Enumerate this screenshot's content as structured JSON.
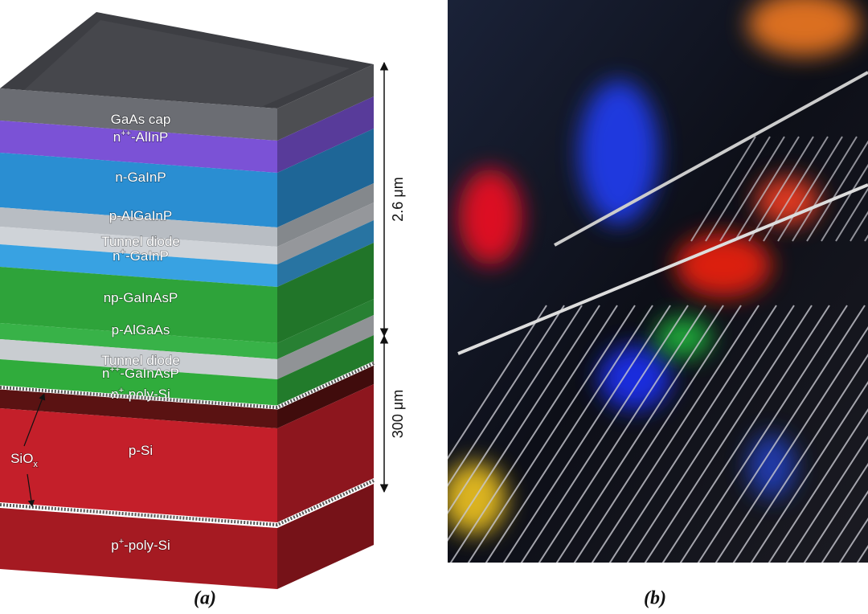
{
  "panel_a": {
    "layers": [
      {
        "name": "GaAs cap"
      },
      {
        "name": "n",
        "sup": "++",
        "rest": "-AlInP"
      },
      {
        "name": "n-GaInP"
      },
      {
        "name": "p-AlGaInP"
      },
      {
        "name": "Tunnel diode"
      },
      {
        "name": "n",
        "sup": "+",
        "rest": "-GaInP"
      },
      {
        "name": "np-GaInAsP"
      },
      {
        "name": "p-AlGaAs"
      },
      {
        "name": "Tunnel diode"
      },
      {
        "name": "n",
        "sup": "++",
        "rest": "-GaInAsP"
      },
      {
        "name": "n",
        "sup": "+",
        "rest": "-poly-Si"
      },
      {
        "name": "p-Si"
      },
      {
        "name": "p",
        "sup": "+",
        "rest": "-poly-Si"
      }
    ],
    "dimensions": [
      "2.6 μm",
      "300 μm"
    ],
    "oxide_label": {
      "base": "SiO",
      "sub": "x"
    },
    "caption": "(a)"
  },
  "panel_b": {
    "caption": "(b)"
  }
}
